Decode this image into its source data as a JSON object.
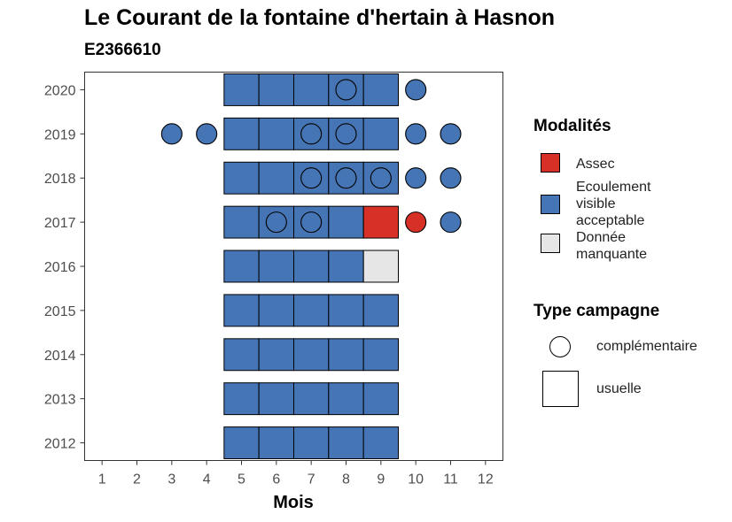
{
  "title": "Le Courant de la fontaine d'hertain à Hasnon",
  "subtitle": "E2366610",
  "colors": {
    "Assec": "#d73027",
    "Ecoulement visible acceptable": "#4575b4",
    "Donnée manquante": "#e6e6e6"
  },
  "legend": {
    "modalites_title": "Modalités",
    "modalites": [
      {
        "label": "Assec",
        "color": "#d73027"
      },
      {
        "label": "Ecoulement\nvisible\nacceptable",
        "color": "#4575b4"
      },
      {
        "label": "Donnée\nmanquante",
        "color": "#e6e6e6"
      }
    ],
    "campagne_title": "Type campagne",
    "campagnes": [
      {
        "label": "complémentaire",
        "shape": "circle"
      },
      {
        "label": "usuelle",
        "shape": "square"
      }
    ]
  },
  "chart_data": {
    "type": "heatmap",
    "title": "Le Courant de la fontaine d'hertain à Hasnon",
    "subtitle": "E2366610",
    "xlabel": "Mois",
    "ylabel": "",
    "x_ticks": [
      1,
      2,
      3,
      4,
      5,
      6,
      7,
      8,
      9,
      10,
      11,
      12
    ],
    "y_ticks": [
      2012,
      2013,
      2014,
      2015,
      2016,
      2017,
      2018,
      2019,
      2020
    ],
    "xlim": [
      0.5,
      12.5
    ],
    "ylim": [
      2011.6,
      2020.4
    ],
    "grid": false,
    "usuelle": [
      {
        "year": 2012,
        "month": 5,
        "modalite": "Ecoulement visible acceptable"
      },
      {
        "year": 2012,
        "month": 6,
        "modalite": "Ecoulement visible acceptable"
      },
      {
        "year": 2012,
        "month": 7,
        "modalite": "Ecoulement visible acceptable"
      },
      {
        "year": 2012,
        "month": 8,
        "modalite": "Ecoulement visible acceptable"
      },
      {
        "year": 2012,
        "month": 9,
        "modalite": "Ecoulement visible acceptable"
      },
      {
        "year": 2013,
        "month": 5,
        "modalite": "Ecoulement visible acceptable"
      },
      {
        "year": 2013,
        "month": 6,
        "modalite": "Ecoulement visible acceptable"
      },
      {
        "year": 2013,
        "month": 7,
        "modalite": "Ecoulement visible acceptable"
      },
      {
        "year": 2013,
        "month": 8,
        "modalite": "Ecoulement visible acceptable"
      },
      {
        "year": 2013,
        "month": 9,
        "modalite": "Ecoulement visible acceptable"
      },
      {
        "year": 2014,
        "month": 5,
        "modalite": "Ecoulement visible acceptable"
      },
      {
        "year": 2014,
        "month": 6,
        "modalite": "Ecoulement visible acceptable"
      },
      {
        "year": 2014,
        "month": 7,
        "modalite": "Ecoulement visible acceptable"
      },
      {
        "year": 2014,
        "month": 8,
        "modalite": "Ecoulement visible acceptable"
      },
      {
        "year": 2014,
        "month": 9,
        "modalite": "Ecoulement visible acceptable"
      },
      {
        "year": 2015,
        "month": 5,
        "modalite": "Ecoulement visible acceptable"
      },
      {
        "year": 2015,
        "month": 6,
        "modalite": "Ecoulement visible acceptable"
      },
      {
        "year": 2015,
        "month": 7,
        "modalite": "Ecoulement visible acceptable"
      },
      {
        "year": 2015,
        "month": 8,
        "modalite": "Ecoulement visible acceptable"
      },
      {
        "year": 2015,
        "month": 9,
        "modalite": "Ecoulement visible acceptable"
      },
      {
        "year": 2016,
        "month": 5,
        "modalite": "Ecoulement visible acceptable"
      },
      {
        "year": 2016,
        "month": 6,
        "modalite": "Ecoulement visible acceptable"
      },
      {
        "year": 2016,
        "month": 7,
        "modalite": "Ecoulement visible acceptable"
      },
      {
        "year": 2016,
        "month": 8,
        "modalite": "Ecoulement visible acceptable"
      },
      {
        "year": 2016,
        "month": 9,
        "modalite": "Donnée manquante"
      },
      {
        "year": 2017,
        "month": 5,
        "modalite": "Ecoulement visible acceptable"
      },
      {
        "year": 2017,
        "month": 6,
        "modalite": "Ecoulement visible acceptable"
      },
      {
        "year": 2017,
        "month": 7,
        "modalite": "Ecoulement visible acceptable"
      },
      {
        "year": 2017,
        "month": 8,
        "modalite": "Ecoulement visible acceptable"
      },
      {
        "year": 2017,
        "month": 9,
        "modalite": "Assec"
      },
      {
        "year": 2018,
        "month": 5,
        "modalite": "Ecoulement visible acceptable"
      },
      {
        "year": 2018,
        "month": 6,
        "modalite": "Ecoulement visible acceptable"
      },
      {
        "year": 2018,
        "month": 7,
        "modalite": "Ecoulement visible acceptable"
      },
      {
        "year": 2018,
        "month": 8,
        "modalite": "Ecoulement visible acceptable"
      },
      {
        "year": 2018,
        "month": 9,
        "modalite": "Ecoulement visible acceptable"
      },
      {
        "year": 2019,
        "month": 5,
        "modalite": "Ecoulement visible acceptable"
      },
      {
        "year": 2019,
        "month": 6,
        "modalite": "Ecoulement visible acceptable"
      },
      {
        "year": 2019,
        "month": 7,
        "modalite": "Ecoulement visible acceptable"
      },
      {
        "year": 2019,
        "month": 8,
        "modalite": "Ecoulement visible acceptable"
      },
      {
        "year": 2019,
        "month": 9,
        "modalite": "Ecoulement visible acceptable"
      },
      {
        "year": 2020,
        "month": 5,
        "modalite": "Ecoulement visible acceptable"
      },
      {
        "year": 2020,
        "month": 6,
        "modalite": "Ecoulement visible acceptable"
      },
      {
        "year": 2020,
        "month": 7,
        "modalite": "Ecoulement visible acceptable"
      },
      {
        "year": 2020,
        "month": 8,
        "modalite": "Ecoulement visible acceptable"
      },
      {
        "year": 2020,
        "month": 9,
        "modalite": "Ecoulement visible acceptable"
      }
    ],
    "complementaire": [
      {
        "year": 2017,
        "month": 6,
        "modalite": "Ecoulement visible acceptable"
      },
      {
        "year": 2017,
        "month": 7,
        "modalite": "Ecoulement visible acceptable"
      },
      {
        "year": 2017,
        "month": 10,
        "modalite": "Assec"
      },
      {
        "year": 2017,
        "month": 11,
        "modalite": "Ecoulement visible acceptable"
      },
      {
        "year": 2018,
        "month": 7,
        "modalite": "Ecoulement visible acceptable"
      },
      {
        "year": 2018,
        "month": 8,
        "modalite": "Ecoulement visible acceptable"
      },
      {
        "year": 2018,
        "month": 9,
        "modalite": "Ecoulement visible acceptable"
      },
      {
        "year": 2018,
        "month": 10,
        "modalite": "Ecoulement visible acceptable"
      },
      {
        "year": 2018,
        "month": 11,
        "modalite": "Ecoulement visible acceptable"
      },
      {
        "year": 2019,
        "month": 3,
        "modalite": "Ecoulement visible acceptable"
      },
      {
        "year": 2019,
        "month": 4,
        "modalite": "Ecoulement visible acceptable"
      },
      {
        "year": 2019,
        "month": 7,
        "modalite": "Ecoulement visible acceptable"
      },
      {
        "year": 2019,
        "month": 8,
        "modalite": "Ecoulement visible acceptable"
      },
      {
        "year": 2019,
        "month": 10,
        "modalite": "Ecoulement visible acceptable"
      },
      {
        "year": 2019,
        "month": 11,
        "modalite": "Ecoulement visible acceptable"
      },
      {
        "year": 2020,
        "month": 8,
        "modalite": "Ecoulement visible acceptable"
      },
      {
        "year": 2020,
        "month": 10,
        "modalite": "Ecoulement visible acceptable"
      }
    ]
  }
}
